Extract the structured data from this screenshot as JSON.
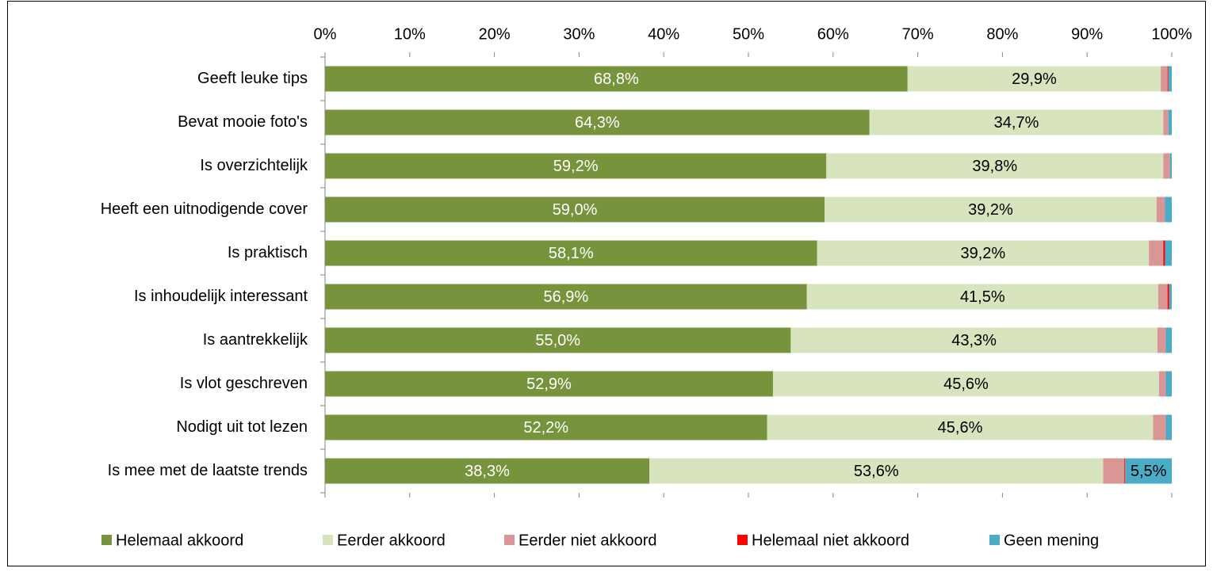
{
  "chart_data": {
    "type": "stacked_barh",
    "categories": [
      "Geeft leuke tips",
      "Bevat mooie foto's",
      "Is overzichtelijk",
      "Heeft een uitnodigende cover",
      "Is praktisch",
      "Is inhoudelijk interessant",
      "Is aantrekkelijk",
      "Is vlot geschreven",
      "Nodigt uit tot lezen",
      "Is mee met de laatste trends"
    ],
    "series": [
      {
        "name": "Helemaal akkoord",
        "color": "#77933c",
        "values": [
          68.8,
          64.3,
          59.2,
          59.0,
          58.1,
          56.9,
          55.0,
          52.9,
          52.2,
          38.3
        ],
        "value_labels": [
          "68,8%",
          "64,3%",
          "59,2%",
          "59,0%",
          "58,1%",
          "56,9%",
          "55,0%",
          "52,9%",
          "52,2%",
          "38,3%"
        ]
      },
      {
        "name": "Eerder akkoord",
        "color": "#d7e4bd",
        "values": [
          29.9,
          34.7,
          39.8,
          39.2,
          39.2,
          41.5,
          43.3,
          45.6,
          45.6,
          53.6
        ],
        "value_labels": [
          "29,9%",
          "34,7%",
          "39,8%",
          "39,2%",
          "39,2%",
          "41,5%",
          "43,3%",
          "45,6%",
          "45,6%",
          "53,6%"
        ]
      },
      {
        "name": "Eerder niet akkoord",
        "color": "#d99694",
        "values": [
          0.8,
          0.6,
          0.8,
          1.0,
          1.7,
          1.1,
          1.0,
          0.8,
          1.5,
          2.5
        ]
      },
      {
        "name": "Helemaal niet akkoord",
        "color": "#ff0000",
        "values": [
          0.1,
          0,
          0,
          0,
          0.2,
          0.2,
          0,
          0,
          0,
          0.1
        ]
      },
      {
        "name": "Geen mening",
        "color": "#4bacc6",
        "values": [
          0.4,
          0.4,
          0.2,
          0.8,
          0.8,
          0.3,
          0.7,
          0.7,
          0.7,
          5.5
        ],
        "value_labels": [
          null,
          null,
          null,
          null,
          null,
          null,
          null,
          null,
          null,
          "5,5%"
        ]
      }
    ],
    "xlim": [
      0,
      100
    ],
    "xticks": [
      {
        "value": 0,
        "label": "0%"
      },
      {
        "value": 10,
        "label": "10%"
      },
      {
        "value": 20,
        "label": "20%"
      },
      {
        "value": 30,
        "label": "30%"
      },
      {
        "value": 40,
        "label": "40%"
      },
      {
        "value": 50,
        "label": "50%"
      },
      {
        "value": 60,
        "label": "60%"
      },
      {
        "value": 70,
        "label": "70%"
      },
      {
        "value": 80,
        "label": "80%"
      },
      {
        "value": 90,
        "label": "90%"
      },
      {
        "value": 100,
        "label": "100%"
      }
    ],
    "legend": "bottom"
  }
}
